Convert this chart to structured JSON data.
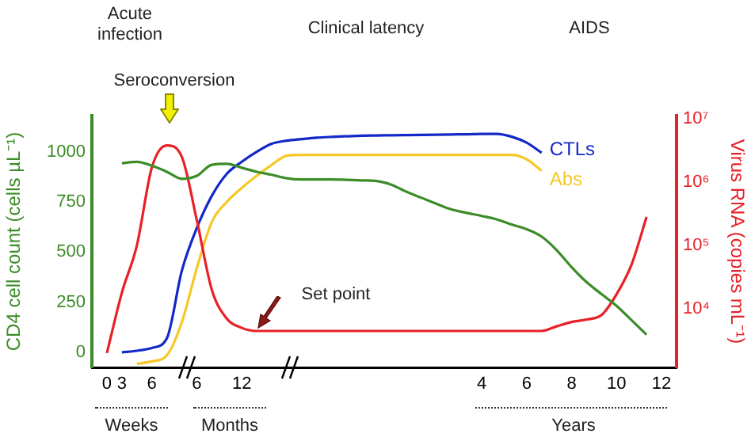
{
  "chart_data": {
    "type": "line",
    "ylabel": "CD4 cell count (cells µL⁻¹)",
    "y2label": "Virus RNA (copies mL⁻¹)",
    "annotations": [
      "Acute infection",
      "Clinical latency",
      "AIDS",
      "Seroconversion",
      "Set point",
      "Weeks",
      "Months",
      "Years"
    ],
    "categories": [
      null,
      "0",
      "3",
      null,
      "6",
      null,
      null,
      "6",
      null,
      null,
      "12",
      null,
      null,
      null,
      null,
      null,
      null,
      null,
      null,
      null,
      null,
      null,
      null,
      null,
      null,
      null,
      "4",
      null,
      null,
      "6",
      null,
      null,
      "8",
      null,
      null,
      "10",
      null,
      null,
      "12",
      null
    ],
    "ylim": [
      -75,
      1180
    ],
    "yticks": [
      0,
      250,
      500,
      750,
      1000
    ],
    "y2lim": [
      1190,
      11220000
    ],
    "y2ticks": [
      {
        "value": 10000,
        "label": "10⁴"
      },
      {
        "value": 100000,
        "label": "10⁵"
      },
      {
        "value": 1000000,
        "label": "10⁶"
      },
      {
        "value": 10000000,
        "label": "10⁷"
      }
    ],
    "log": "y2",
    "grid": false,
    "legend": false,
    "marker": "none",
    "line_style": "solid",
    "series": [
      {
        "color": "#3c8c28",
        "values": [
          null,
          null,
          943,
          950,
          930,
          900,
          865,
          880,
          935,
          940,
          920,
          900,
          885,
          868,
          862,
          862,
          862,
          860,
          857,
          854,
          835,
          800,
          770,
          740,
          712,
          695,
          680,
          663,
          637,
          614,
          577,
          510,
          425,
          350,
          290,
          232,
          160,
          88,
          null,
          null
        ]
      },
      {
        "color": "#e82028",
        "axis": "y2",
        "values": [
          null,
          2000,
          18000,
          100000,
          1700000,
          3800000,
          2500000,
          250000,
          20000,
          7000,
          5000,
          4470,
          4470,
          4470,
          4470,
          4470,
          4470,
          4470,
          4470,
          4470,
          4470,
          4470,
          4470,
          4470,
          4470,
          4470,
          4470,
          4470,
          4470,
          4470,
          4470,
          5300,
          6200,
          6800,
          8000,
          17000,
          50000,
          282000,
          null,
          null
        ]
      },
      {
        "name": "CTLs",
        "color": "#1428c8",
        "values": [
          null,
          null,
          0,
          8,
          22,
          70,
          407,
          620,
          780,
          890,
          950,
          1000,
          1040,
          1055,
          1063,
          1070,
          1074,
          1077,
          1080,
          1081,
          1082,
          1083,
          1084,
          1085,
          1086,
          1087,
          1089,
          1089,
          1075,
          1045,
          995,
          null,
          null,
          null,
          null,
          null,
          null,
          null,
          null,
          null
        ]
      },
      {
        "name": "Abs",
        "color": "#f5c828",
        "values": [
          null,
          null,
          null,
          -57,
          -45,
          -15,
          150,
          420,
          650,
          750,
          820,
          880,
          935,
          980,
          984,
          984,
          984,
          984,
          984,
          984,
          984,
          984,
          984,
          984,
          984,
          984,
          984,
          984,
          984,
          962,
          905,
          null,
          null,
          null,
          null,
          null,
          null,
          null,
          null,
          null
        ]
      }
    ]
  }
}
